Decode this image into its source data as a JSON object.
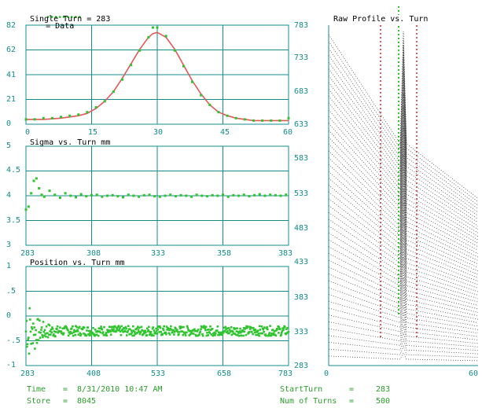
{
  "legend": {
    "marker": "•••••••••",
    "label": "= Data"
  },
  "colors": {
    "axis": "#148c8c",
    "data": "#2ec42e",
    "fit": "#e05a5a",
    "text": "#2a9d2a"
  },
  "single_turn": {
    "title": "Single Turn = 283",
    "left_ticks": [
      "82",
      "62",
      "41",
      "21",
      "0"
    ],
    "right_ticks": [
      "783",
      "733",
      "683",
      "633"
    ],
    "x_ticks": [
      "0",
      "15",
      "30",
      "45",
      "60"
    ]
  },
  "sigma": {
    "title": "Sigma vs. Turn mm",
    "y_ticks": [
      "5",
      "4.5",
      "4",
      "3.5",
      "3"
    ],
    "x_ticks": [
      "283",
      "308",
      "333",
      "358",
      "383"
    ],
    "right_ticks": [
      "583",
      "533",
      "483"
    ]
  },
  "position": {
    "title": "Position vs. Turn mm",
    "y_ticks": [
      "1",
      ".5",
      "0",
      "-.5",
      "-1"
    ],
    "x_ticks": [
      "283",
      "408",
      "533",
      "658",
      "783"
    ],
    "right_ticks": [
      "433",
      "383",
      "333",
      "283"
    ]
  },
  "raw_profile": {
    "title": "Raw Profile vs. Turn",
    "x_ticks": [
      "0",
      "60"
    ]
  },
  "footer": {
    "time_label": "Time",
    "time_eq": "=",
    "time_value": "8/31/2010 10:47 AM",
    "store_label": "Store",
    "store_eq": "=",
    "store_value": "8045",
    "start_label": "StartTurn",
    "start_eq": "=",
    "start_value": "283",
    "num_label": "Num of Turns",
    "num_eq": "=",
    "num_value": "500"
  },
  "chart_data": [
    {
      "type": "scatter",
      "title": "Single Turn = 283",
      "xlim": [
        0,
        60
      ],
      "ylim": [
        0,
        82
      ],
      "series": [
        {
          "name": "Data",
          "x": [
            0,
            2,
            4,
            6,
            8,
            10,
            12,
            14,
            16,
            18,
            20,
            22,
            24,
            26,
            28,
            29,
            30,
            32,
            34,
            36,
            38,
            40,
            42,
            44,
            46,
            48,
            50,
            52,
            54,
            56,
            58,
            60
          ],
          "y": [
            4,
            4,
            5,
            5,
            6,
            7,
            8,
            10,
            14,
            19,
            27,
            37,
            49,
            61,
            72,
            80,
            80,
            73,
            61,
            48,
            35,
            24,
            16,
            10,
            7,
            5,
            4,
            3,
            3,
            3,
            3,
            5
          ]
        },
        {
          "name": "Fit",
          "x": [
            0,
            4,
            8,
            12,
            14,
            16,
            18,
            20,
            22,
            24,
            26,
            28,
            29,
            30,
            32,
            34,
            36,
            38,
            40,
            42,
            44,
            46,
            48,
            52,
            56,
            60
          ],
          "y": [
            4,
            4,
            5,
            7,
            9,
            13,
            19,
            27,
            38,
            50,
            62,
            72,
            75,
            76,
            72,
            62,
            49,
            36,
            25,
            16,
            10,
            7,
            5,
            3,
            3,
            3
          ]
        }
      ]
    },
    {
      "type": "scatter",
      "title": "Sigma vs. Turn mm",
      "xlim": [
        283,
        383
      ],
      "ylim": [
        3,
        5
      ],
      "series": [
        {
          "name": "Sigma",
          "x": [
            283,
            284,
            285,
            286,
            287,
            288,
            289,
            290,
            292,
            294,
            296,
            298,
            300,
            302,
            304,
            306,
            308,
            310,
            312,
            314,
            316,
            318,
            320,
            322,
            324,
            326,
            328,
            330,
            332,
            334,
            336,
            338,
            340,
            342,
            344,
            346,
            348,
            350,
            352,
            354,
            356,
            358,
            360,
            362,
            364,
            366,
            368,
            370,
            372,
            374,
            376,
            378,
            380,
            382
          ],
          "y": [
            3.72,
            3.78,
            4.05,
            4.3,
            4.35,
            4.15,
            4.02,
            3.98,
            4.1,
            4.02,
            3.96,
            4.05,
            4.0,
            3.97,
            4.03,
            3.99,
            4.01,
            4.02,
            3.98,
            4.0,
            4.01,
            3.99,
            3.97,
            4.02,
            4.0,
            3.98,
            4.01,
            4.02,
            3.99,
            3.98,
            4.0,
            4.02,
            3.99,
            4.01,
            4.0,
            3.98,
            4.02,
            4.0,
            3.99,
            4.01,
            4.0,
            4.02,
            3.98,
            4.01,
            4.0,
            4.02,
            3.99,
            4.01,
            4.03,
            4.0,
            4.02,
            4.01,
            4.0,
            4.02
          ]
        }
      ]
    },
    {
      "type": "scatter",
      "title": "Position vs. Turn mm",
      "xlim": [
        283,
        783
      ],
      "ylim": [
        -1,
        1
      ],
      "series": [
        {
          "name": "Position",
          "trend": "starts near -0.7 to 0.2 with large scatter at turn 283, settles to about -0.3 with ±0.1 scatter after turn 340"
        }
      ]
    },
    {
      "type": "line",
      "title": "Raw Profile vs. Turn",
      "xlim": [
        0,
        60
      ],
      "ylim": [
        283,
        783
      ],
      "series": [
        {
          "name": "Profiles",
          "trend": "stacked dotted profiles, one per turn, with a single peak near x = 30"
        }
      ]
    }
  ]
}
